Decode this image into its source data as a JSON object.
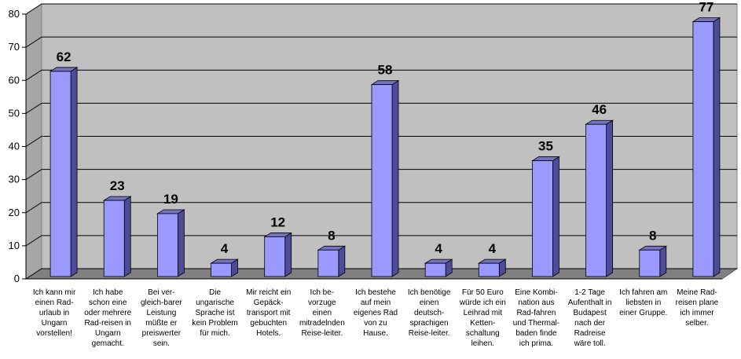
{
  "chart_data": {
    "type": "bar",
    "title": "",
    "xlabel": "",
    "ylabel": "",
    "ylim": [
      0,
      80
    ],
    "yticks": [
      "0",
      "10",
      "20",
      "30",
      "40",
      "50",
      "60",
      "70",
      "80"
    ],
    "grid": true,
    "legend": "none",
    "bar_color": "#9999ff",
    "categories": [
      [
        "Ich kann mir",
        "einen Rad-",
        "urlaub in",
        "Ungarn",
        "vorstellen!"
      ],
      [
        "Ich habe",
        "schon eine",
        "oder mehrere",
        "Rad-reisen in",
        "Ungarn",
        "gemacht."
      ],
      [
        "Bei ver-",
        "gleich-barer",
        "Leistung",
        "müßte er",
        "preiswerter",
        "sein."
      ],
      [
        "Die",
        "ungarische",
        "Sprache ist",
        "kein Problem",
        "für mich."
      ],
      [
        "Mir reicht ein",
        "Gepäck-",
        "transport mit",
        "gebuchten",
        "Hotels."
      ],
      [
        "Ich be-",
        "vorzuge",
        "einen",
        "mitradelnden",
        "Reise-leiter."
      ],
      [
        "Ich bestehe",
        "auf mein",
        "eigenes Rad",
        "von zu",
        "Hause."
      ],
      [
        "Ich benötige",
        "einen",
        "deutsch-",
        "sprachigen",
        "Reise-leiter."
      ],
      [
        "Für 50 Euro",
        "würde ich ein",
        "Leihrad mit",
        "Ketten-",
        "schaltung",
        "leihen."
      ],
      [
        "Eine Kombi-",
        "nation aus",
        "Rad-fahren",
        "und Thermal-",
        "baden finde",
        "ich prima."
      ],
      [
        "1-2 Tage",
        "Aufenthalt in",
        "Budapest",
        "nach der",
        "Radreise",
        "wäre toll."
      ],
      [
        "Ich fahren am",
        "liebsten in",
        "einer Gruppe."
      ],
      [
        "Meine Rad-",
        "reisen plane",
        "ich immer",
        "selber."
      ]
    ],
    "values": [
      62,
      23,
      19,
      4,
      12,
      8,
      58,
      4,
      4,
      35,
      46,
      8,
      77
    ],
    "value_labels": [
      "62",
      "23",
      "19",
      "4",
      "12",
      "8",
      "58",
      "4",
      "4",
      "35",
      "46",
      "8",
      "77"
    ]
  }
}
